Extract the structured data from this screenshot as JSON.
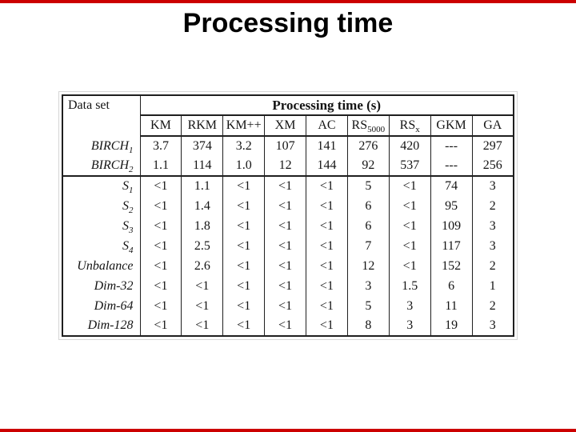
{
  "slide": {
    "title": "Processing time",
    "accent_color": "#cc0000"
  },
  "table": {
    "corner_header": "Data set",
    "group_header": "Processing time (s)",
    "columns": [
      {
        "base": "KM",
        "sub": ""
      },
      {
        "base": "RKM",
        "sub": ""
      },
      {
        "base": "KM++",
        "sub": ""
      },
      {
        "base": "XM",
        "sub": ""
      },
      {
        "base": "AC",
        "sub": ""
      },
      {
        "base": "RS",
        "sub": "5000"
      },
      {
        "base": "RS",
        "sub": "x"
      },
      {
        "base": "GKM",
        "sub": ""
      },
      {
        "base": "GA",
        "sub": ""
      }
    ],
    "rows": [
      {
        "base": "BIRCH",
        "sub": "1",
        "sep": false,
        "values": [
          "3.7",
          "374",
          "3.2",
          "107",
          "141",
          "276",
          "420",
          "---",
          "297"
        ]
      },
      {
        "base": "BIRCH",
        "sub": "2",
        "sep": false,
        "values": [
          "1.1",
          "114",
          "1.0",
          "12",
          "144",
          "92",
          "537",
          "---",
          "256"
        ]
      },
      {
        "base": "S",
        "sub": "1",
        "sep": true,
        "values": [
          "<1",
          "1.1",
          "<1",
          "<1",
          "<1",
          "5",
          "<1",
          "74",
          "3"
        ]
      },
      {
        "base": "S",
        "sub": "2",
        "sep": false,
        "values": [
          "<1",
          "1.4",
          "<1",
          "<1",
          "<1",
          "6",
          "<1",
          "95",
          "2"
        ]
      },
      {
        "base": "S",
        "sub": "3",
        "sep": false,
        "values": [
          "<1",
          "1.8",
          "<1",
          "<1",
          "<1",
          "6",
          "<1",
          "109",
          "3"
        ]
      },
      {
        "base": "S",
        "sub": "4",
        "sep": false,
        "values": [
          "<1",
          "2.5",
          "<1",
          "<1",
          "<1",
          "7",
          "<1",
          "117",
          "3"
        ]
      },
      {
        "base": "Unbalance",
        "sub": "",
        "sep": false,
        "values": [
          "<1",
          "2.6",
          "<1",
          "<1",
          "<1",
          "12",
          "<1",
          "152",
          "2"
        ]
      },
      {
        "base": "Dim-32",
        "sub": "",
        "sep": false,
        "values": [
          "<1",
          "<1",
          "<1",
          "<1",
          "<1",
          "3",
          "1.5",
          "6",
          "1"
        ]
      },
      {
        "base": "Dim-64",
        "sub": "",
        "sep": false,
        "values": [
          "<1",
          "<1",
          "<1",
          "<1",
          "<1",
          "5",
          "3",
          "11",
          "2"
        ]
      },
      {
        "base": "Dim-128",
        "sub": "",
        "sep": false,
        "values": [
          "<1",
          "<1",
          "<1",
          "<1",
          "<1",
          "8",
          "3",
          "19",
          "3"
        ]
      }
    ]
  },
  "chart_data": {
    "type": "table",
    "title": "Processing time (s)",
    "row_header": "Data set",
    "columns": [
      "KM",
      "RKM",
      "KM++",
      "XM",
      "AC",
      "RS5000",
      "RSx",
      "GKM",
      "GA"
    ],
    "rows": [
      "BIRCH1",
      "BIRCH2",
      "S1",
      "S2",
      "S3",
      "S4",
      "Unbalance",
      "Dim-32",
      "Dim-64",
      "Dim-128"
    ]
  }
}
